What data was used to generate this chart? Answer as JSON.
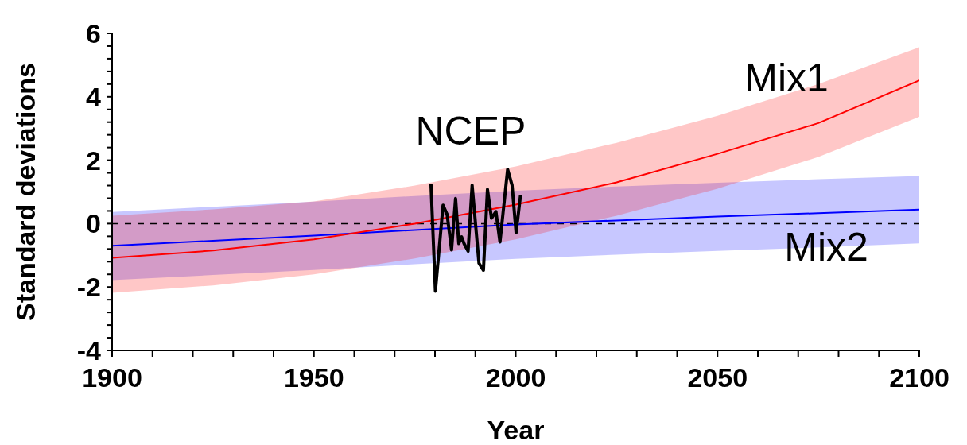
{
  "chart_data": {
    "type": "line",
    "xlabel": "Year",
    "ylabel": "Standard deviations",
    "xlim": [
      1900,
      2100
    ],
    "ylim": [
      -4,
      6
    ],
    "xticks": [
      1900,
      {
        "value": 1910,
        "label": null
      },
      {
        "value": 1920,
        "label": null
      },
      {
        "value": 1930,
        "label": null
      },
      {
        "value": 1940,
        "label": null
      },
      1950,
      {
        "value": 1960,
        "label": null
      },
      {
        "value": 1970,
        "label": null
      },
      {
        "value": 1980,
        "label": null
      },
      {
        "value": 1990,
        "label": null
      },
      2000,
      {
        "value": 2010,
        "label": null
      },
      {
        "value": 2020,
        "label": null
      },
      {
        "value": 2030,
        "label": null
      },
      {
        "value": 2040,
        "label": null
      },
      2050,
      {
        "value": 2060,
        "label": null
      },
      {
        "value": 2070,
        "label": null
      },
      {
        "value": 2080,
        "label": null
      },
      {
        "value": 2090,
        "label": null
      },
      2100
    ],
    "yticks": [
      -4,
      {
        "value": -3.6,
        "label": null
      },
      {
        "value": -3.2,
        "label": null
      },
      {
        "value": -2.8,
        "label": null
      },
      {
        "value": -2.4,
        "label": null
      },
      -2,
      {
        "value": -1.6,
        "label": null
      },
      {
        "value": -1.2,
        "label": null
      },
      {
        "value": -0.8,
        "label": null
      },
      {
        "value": -0.4,
        "label": null
      },
      0,
      {
        "value": 0.4,
        "label": null
      },
      {
        "value": 0.8,
        "label": null
      },
      {
        "value": 1.2,
        "label": null
      },
      {
        "value": 1.6,
        "label": null
      },
      2,
      {
        "value": 2.4,
        "label": null
      },
      {
        "value": 2.8,
        "label": null
      },
      {
        "value": 3.2,
        "label": null
      },
      {
        "value": 3.6,
        "label": null
      },
      4,
      {
        "value": 4.4,
        "label": null
      },
      {
        "value": 4.8,
        "label": null
      },
      {
        "value": 5.2,
        "label": null
      },
      {
        "value": 5.6,
        "label": null
      },
      6
    ],
    "marker": "none",
    "line_style": "solid",
    "ref_lines": [
      {
        "axis": "y",
        "value": 0,
        "color": "#000000",
        "line_style": "dashed"
      }
    ],
    "series": [
      {
        "name": "Mix2",
        "color": "#0000ff",
        "x": [
          1900,
          1925,
          1950,
          1975,
          2000,
          2025,
          2050,
          2075,
          2100
        ],
        "values": [
          -0.7,
          -0.54,
          -0.38,
          -0.2,
          -0.03,
          0.1,
          0.22,
          0.33,
          0.44
        ],
        "lower": [
          -1.78,
          -1.62,
          -1.46,
          -1.28,
          -1.11,
          -0.98,
          -0.86,
          -0.75,
          -0.62
        ],
        "upper": [
          0.37,
          0.53,
          0.69,
          0.87,
          1.04,
          1.17,
          1.29,
          1.4,
          1.5
        ]
      },
      {
        "name": "Mix1",
        "color": "#ff0000",
        "x": [
          1900,
          1925,
          1950,
          1975,
          2000,
          2025,
          2050,
          2075,
          2100
        ],
        "values": [
          -1.08,
          -0.85,
          -0.5,
          0.0,
          0.6,
          1.3,
          2.2,
          3.17,
          4.52
        ],
        "lower": [
          -2.18,
          -1.95,
          -1.6,
          -1.1,
          -0.5,
          0.25,
          1.1,
          2.1,
          3.37
        ],
        "upper": [
          0.25,
          0.45,
          0.7,
          1.2,
          1.8,
          2.55,
          3.4,
          4.4,
          5.56
        ]
      },
      {
        "name": "NCEP",
        "color": "#000000",
        "x": [
          1979,
          1980.1,
          1982,
          1983,
          1984.1,
          1985.1,
          1985.9,
          1986.6,
          1987.2,
          1988.2,
          1989.2,
          1990.9,
          1992,
          1993,
          1994,
          1995.1,
          1996.1,
          1998,
          1999.1,
          2000.1,
          2001.2
        ],
        "values": [
          1.25,
          -2.13,
          0.58,
          0.29,
          -0.83,
          0.79,
          -0.63,
          -0.42,
          -0.63,
          -0.87,
          1.21,
          -1.25,
          -1.47,
          1.08,
          0.17,
          0.38,
          -0.58,
          1.71,
          1.21,
          -0.29,
          0.9
        ]
      }
    ]
  }
}
